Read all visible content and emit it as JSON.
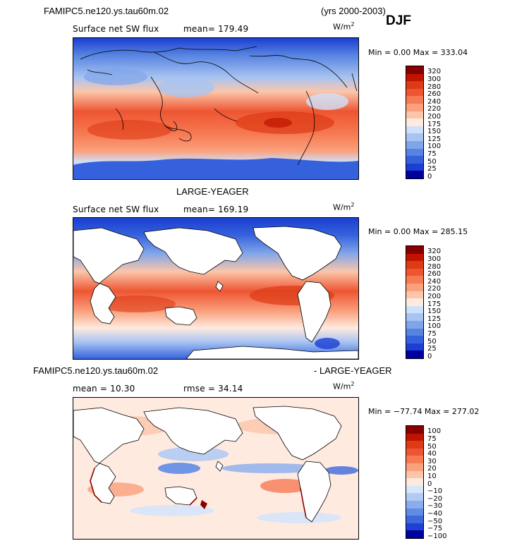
{
  "panels": [
    {
      "id": "top",
      "header_left": "FAMIPC5.ne120.ys.tau60m.02",
      "header_right": "(yrs 2000-2003)",
      "season": "DJF",
      "subtitle": "Surface net SW flux",
      "stat1": "mean=  179.49",
      "stat2": "",
      "units": "W/m",
      "units_exp": "2",
      "minmax": "Min =    0.00 Max = 333.04",
      "land_masked": false,
      "colorbar": {
        "labels": [
          "320",
          "300",
          "280",
          "260",
          "240",
          "220",
          "200",
          "175",
          "150",
          "125",
          "100",
          "75",
          "50",
          "25",
          "0"
        ],
        "colors": [
          "#870000",
          "#c01400",
          "#dd3a16",
          "#ee5532",
          "#f67a52",
          "#faa07c",
          "#fbc6aa",
          "#ffeadf",
          "#cfe1fa",
          "#a8c4f2",
          "#80a5ea",
          "#5783e1",
          "#3561dc",
          "#1a3fd2",
          "#00009e"
        ]
      }
    },
    {
      "id": "middle",
      "header_left": "",
      "header_center": "LARGE-YEAGER",
      "subtitle": "Surface net SW flux",
      "stat1": "mean=  169.19",
      "stat2": "",
      "units": "W/m",
      "units_exp": "2",
      "minmax": "Min =    0.00 Max = 285.15",
      "land_masked": true,
      "colorbar": {
        "labels": [
          "320",
          "300",
          "280",
          "260",
          "240",
          "220",
          "200",
          "175",
          "150",
          "125",
          "100",
          "75",
          "50",
          "25",
          "0"
        ],
        "colors": [
          "#870000",
          "#c01400",
          "#dd3a16",
          "#ee5532",
          "#f67a52",
          "#faa07c",
          "#fbc6aa",
          "#ffeadf",
          "#cfe1fa",
          "#a8c4f2",
          "#80a5ea",
          "#5783e1",
          "#3561dc",
          "#1a3fd2",
          "#00009e"
        ]
      }
    },
    {
      "id": "bottom",
      "header_left": "FAMIPC5.ne120.ys.tau60m.02",
      "header_right": "- LARGE-YEAGER",
      "subtitle": "",
      "stat1": "mean =   10.30",
      "stat2": "rmse =   34.14",
      "units": "W/m",
      "units_exp": "2",
      "minmax": "Min = −77.74 Max = 277.02",
      "land_masked": true,
      "colorbar": {
        "labels": [
          "100",
          "75",
          "50",
          "40",
          "30",
          "20",
          "10",
          "0",
          "−10",
          "−20",
          "−30",
          "−40",
          "−50",
          "−75",
          "−100"
        ],
        "colors": [
          "#870000",
          "#c01400",
          "#dd3a16",
          "#ee5532",
          "#f67a52",
          "#faa07c",
          "#fbc6aa",
          "#ffeadf",
          "#d6e6fb",
          "#b2cbf4",
          "#8aaded",
          "#628be4",
          "#3d68de",
          "#1c42d2",
          "#00009e"
        ]
      }
    }
  ],
  "chart_data": [
    {
      "type": "heatmap",
      "title": "Surface net SW flux",
      "mean": 179.49,
      "min": 0.0,
      "max": 333.04,
      "units": "W/m2",
      "contour_levels": [
        0,
        25,
        50,
        75,
        100,
        125,
        150,
        175,
        200,
        220,
        240,
        260,
        280,
        300,
        320
      ]
    },
    {
      "type": "heatmap",
      "title": "Surface net SW flux",
      "mean": 169.19,
      "min": 0.0,
      "max": 285.15,
      "units": "W/m2",
      "contour_levels": [
        0,
        25,
        50,
        75,
        100,
        125,
        150,
        175,
        200,
        220,
        240,
        260,
        280,
        300,
        320
      ]
    },
    {
      "type": "heatmap",
      "title": "",
      "mean": 10.3,
      "rmse": 34.14,
      "min": -77.74,
      "max": 277.02,
      "units": "W/m2",
      "contour_levels": [
        -100,
        -75,
        -50,
        -40,
        -30,
        -20,
        -10,
        0,
        10,
        20,
        30,
        40,
        50,
        75,
        100
      ]
    }
  ]
}
